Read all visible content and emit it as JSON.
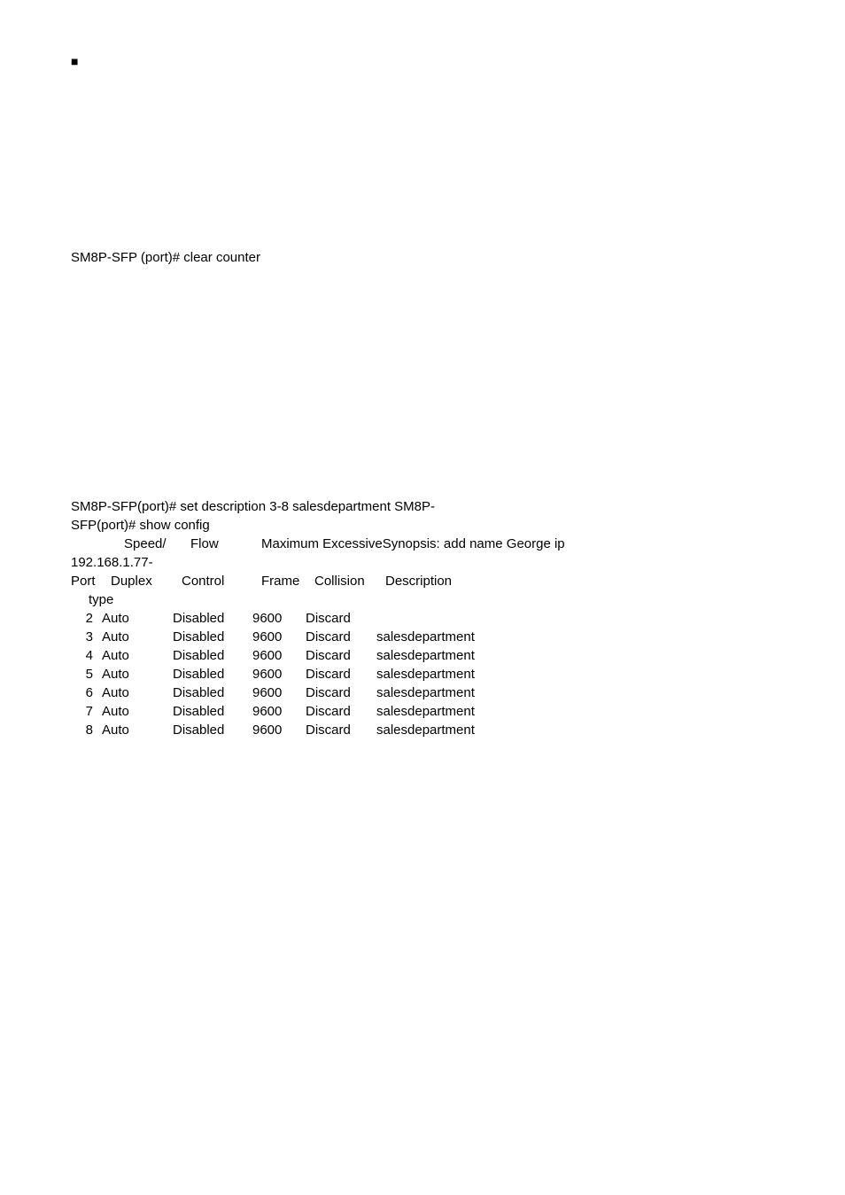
{
  "bullet_symbol": "■",
  "line_clear_counter": "SM8P-SFP (port)# clear counter",
  "cli_line1": "SM8P-SFP(port)# set description 3-8 salesdepartment   SM8P-",
  "cli_line2": "SFP(port)# show config",
  "header1": {
    "speed": "Speed/",
    "flow": "Flow",
    "maxline": "Maximum ExcessiveSynopsis: add name George ip"
  },
  "ip_line": "192.168.1.77-",
  "header2": {
    "port": "Port",
    "duplex": "Duplex",
    "control": "Control",
    "frame": "Frame",
    "collision": "Collision",
    "description": "Description"
  },
  "type_label": "type",
  "rows": [
    {
      "port": "2",
      "duplex": "Auto",
      "control": "Disabled",
      "frame": "9600",
      "collision": "Discard",
      "description": ""
    },
    {
      "port": "3",
      "duplex": "Auto",
      "control": "Disabled",
      "frame": "9600",
      "collision": "Discard",
      "description": "salesdepartment"
    },
    {
      "port": "4",
      "duplex": "Auto",
      "control": "Disabled",
      "frame": "9600",
      "collision": "Discard",
      "description": "salesdepartment"
    },
    {
      "port": "5",
      "duplex": "Auto",
      "control": "Disabled",
      "frame": "9600",
      "collision": "Discard",
      "description": "salesdepartment"
    },
    {
      "port": "6",
      "duplex": "Auto",
      "control": "Disabled",
      "frame": "9600",
      "collision": "Discard",
      "description": "salesdepartment"
    },
    {
      "port": "7",
      "duplex": "Auto",
      "control": "Disabled",
      "frame": "9600",
      "collision": "Discard",
      "description": "salesdepartment"
    },
    {
      "port": "8",
      "duplex": "Auto",
      "control": "Disabled",
      "frame": "9600",
      "collision": "Discard",
      "description": "salesdepartment"
    }
  ]
}
